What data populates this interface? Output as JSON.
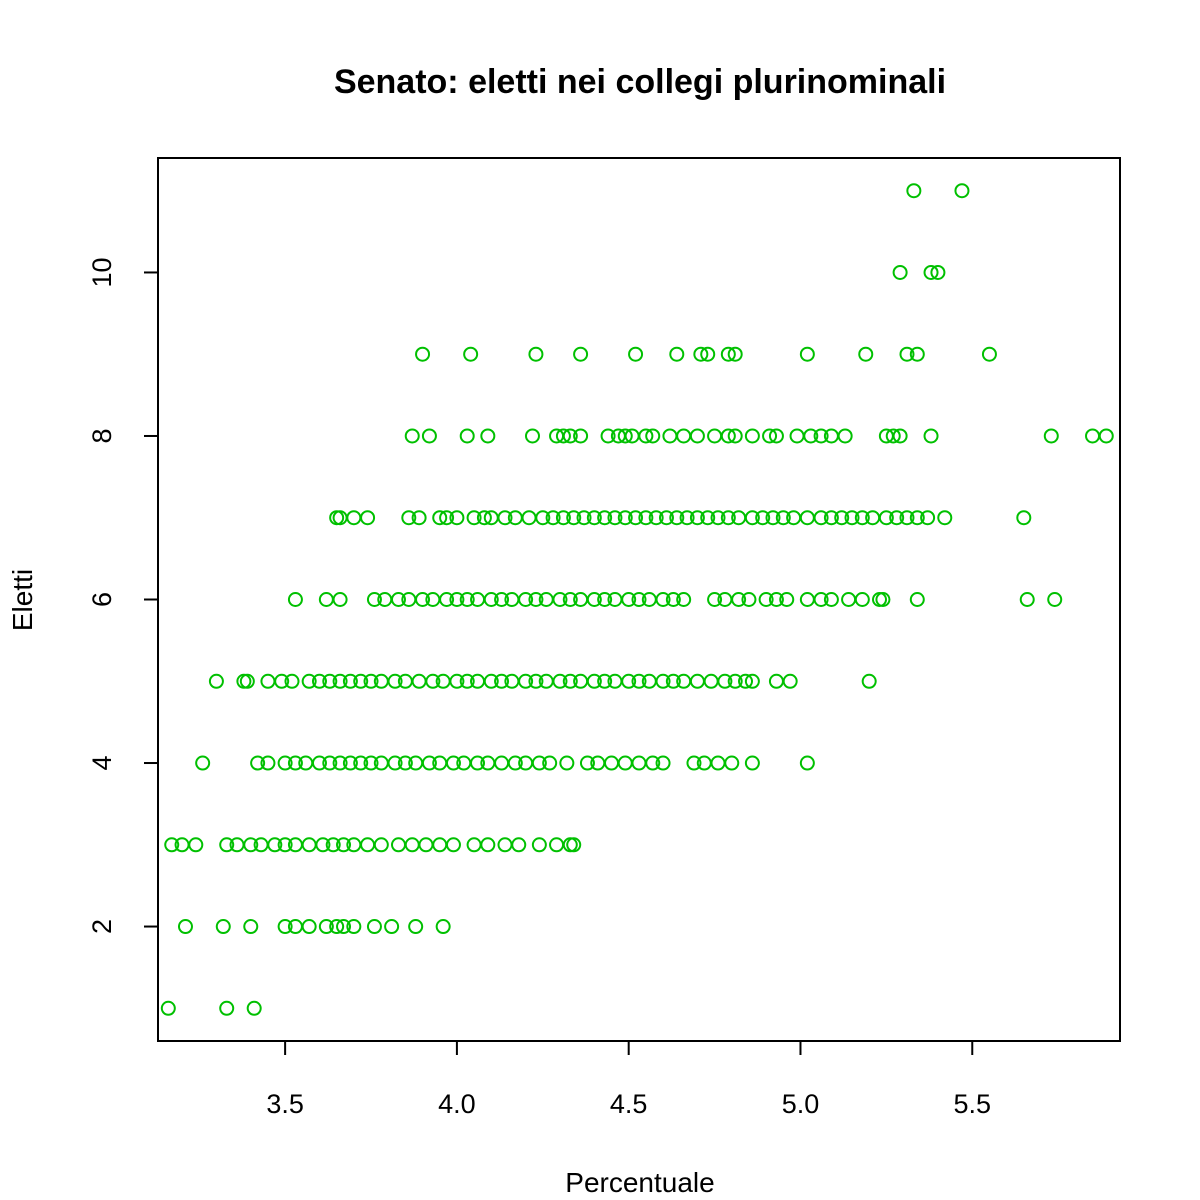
{
  "chart_data": {
    "type": "scatter",
    "title": "Senato: eletti nei collegi plurinominali",
    "xlabel": "Percentuale",
    "ylabel": "Eletti",
    "xlim": [
      3.13,
      5.93
    ],
    "ylim": [
      0.6,
      11.4
    ],
    "x_ticks": [
      3.5,
      4.0,
      4.5,
      5.0,
      5.5
    ],
    "x_tick_labels": [
      "3.5",
      "4.0",
      "4.5",
      "5.0",
      "5.5"
    ],
    "y_ticks": [
      2,
      4,
      6,
      8,
      10
    ],
    "y_tick_labels": [
      "2",
      "4",
      "6",
      "8",
      "10"
    ],
    "grid": false,
    "marker": "open-circle",
    "color": "#00c000",
    "series": [
      {
        "x": [
          5.33,
          5.47,
          5.29,
          5.38,
          5.4,
          3.9,
          4.04,
          4.23,
          4.36,
          4.52,
          4.64,
          4.71,
          4.73,
          4.79,
          4.81,
          5.02,
          5.19,
          5.31,
          5.34,
          5.55,
          3.87,
          3.92,
          4.03,
          4.09,
          4.22,
          4.29,
          4.31,
          4.33,
          4.36,
          4.44,
          4.47,
          4.49,
          4.51,
          4.55,
          4.57,
          4.62,
          4.66,
          4.7,
          4.75,
          4.79,
          4.81,
          4.86,
          4.91,
          4.93,
          4.99,
          5.03,
          5.06,
          5.09,
          5.13,
          5.25,
          5.27,
          5.29,
          5.38,
          5.73,
          5.85,
          5.89,
          3.65,
          3.66,
          3.7,
          3.74,
          3.86,
          3.89,
          3.95,
          3.97,
          4.0,
          4.05,
          4.08,
          4.1,
          4.14,
          4.17,
          4.21,
          4.25,
          4.28,
          4.31,
          4.34,
          4.37,
          4.4,
          4.43,
          4.46,
          4.49,
          4.52,
          4.55,
          4.58,
          4.61,
          4.64,
          4.67,
          4.7,
          4.73,
          4.76,
          4.79,
          4.82,
          4.86,
          4.89,
          4.92,
          4.95,
          4.98,
          5.02,
          5.06,
          5.09,
          5.12,
          5.15,
          5.18,
          5.21,
          5.25,
          5.28,
          5.31,
          5.34,
          5.37,
          5.42,
          5.65,
          3.53,
          3.62,
          3.66,
          3.76,
          3.79,
          3.83,
          3.86,
          3.9,
          3.93,
          3.97,
          4.0,
          4.03,
          4.06,
          4.1,
          4.13,
          4.16,
          4.2,
          4.23,
          4.26,
          4.3,
          4.33,
          4.36,
          4.4,
          4.43,
          4.46,
          4.5,
          4.53,
          4.56,
          4.6,
          4.63,
          4.66,
          4.75,
          4.78,
          4.82,
          4.85,
          4.9,
          4.93,
          4.96,
          5.02,
          5.06,
          5.09,
          5.14,
          5.18,
          5.23,
          5.24,
          5.34,
          5.66,
          5.74,
          3.3,
          3.38,
          3.39,
          3.45,
          3.49,
          3.52,
          3.57,
          3.6,
          3.63,
          3.66,
          3.69,
          3.72,
          3.75,
          3.78,
          3.82,
          3.85,
          3.89,
          3.93,
          3.96,
          4.0,
          4.03,
          4.06,
          4.1,
          4.13,
          4.16,
          4.2,
          4.23,
          4.26,
          4.3,
          4.33,
          4.36,
          4.4,
          4.43,
          4.46,
          4.5,
          4.53,
          4.56,
          4.6,
          4.63,
          4.66,
          4.7,
          4.74,
          4.78,
          4.81,
          4.84,
          4.86,
          4.93,
          4.97,
          5.2,
          3.26,
          3.42,
          3.45,
          3.5,
          3.53,
          3.56,
          3.6,
          3.63,
          3.66,
          3.69,
          3.72,
          3.75,
          3.78,
          3.82,
          3.85,
          3.88,
          3.92,
          3.95,
          3.99,
          4.02,
          4.06,
          4.09,
          4.13,
          4.17,
          4.2,
          4.24,
          4.27,
          4.32,
          4.38,
          4.41,
          4.45,
          4.49,
          4.53,
          4.57,
          4.6,
          4.69,
          4.72,
          4.76,
          4.8,
          4.86,
          5.02,
          3.17,
          3.2,
          3.24,
          3.33,
          3.36,
          3.4,
          3.43,
          3.47,
          3.5,
          3.53,
          3.57,
          3.61,
          3.64,
          3.67,
          3.7,
          3.74,
          3.78,
          3.83,
          3.87,
          3.91,
          3.95,
          3.99,
          4.05,
          4.09,
          4.14,
          4.18,
          4.24,
          4.29,
          4.33,
          4.34,
          3.21,
          3.32,
          3.4,
          3.5,
          3.53,
          3.57,
          3.62,
          3.65,
          3.67,
          3.7,
          3.76,
          3.81,
          3.88,
          3.96,
          3.16,
          3.33,
          3.41
        ],
        "y": [
          11,
          11,
          10,
          10,
          10,
          9,
          9,
          9,
          9,
          9,
          9,
          9,
          9,
          9,
          9,
          9,
          9,
          9,
          9,
          9,
          8,
          8,
          8,
          8,
          8,
          8,
          8,
          8,
          8,
          8,
          8,
          8,
          8,
          8,
          8,
          8,
          8,
          8,
          8,
          8,
          8,
          8,
          8,
          8,
          8,
          8,
          8,
          8,
          8,
          8,
          8,
          8,
          8,
          8,
          8,
          8,
          7,
          7,
          7,
          7,
          7,
          7,
          7,
          7,
          7,
          7,
          7,
          7,
          7,
          7,
          7,
          7,
          7,
          7,
          7,
          7,
          7,
          7,
          7,
          7,
          7,
          7,
          7,
          7,
          7,
          7,
          7,
          7,
          7,
          7,
          7,
          7,
          7,
          7,
          7,
          7,
          7,
          7,
          7,
          7,
          7,
          7,
          7,
          7,
          7,
          7,
          7,
          7,
          7,
          7,
          6,
          6,
          6,
          6,
          6,
          6,
          6,
          6,
          6,
          6,
          6,
          6,
          6,
          6,
          6,
          6,
          6,
          6,
          6,
          6,
          6,
          6,
          6,
          6,
          6,
          6,
          6,
          6,
          6,
          6,
          6,
          6,
          6,
          6,
          6,
          6,
          6,
          6,
          6,
          6,
          6,
          6,
          6,
          6,
          6,
          6,
          6,
          6,
          5,
          5,
          5,
          5,
          5,
          5,
          5,
          5,
          5,
          5,
          5,
          5,
          5,
          5,
          5,
          5,
          5,
          5,
          5,
          5,
          5,
          5,
          5,
          5,
          5,
          5,
          5,
          5,
          5,
          5,
          5,
          5,
          5,
          5,
          5,
          5,
          5,
          5,
          5,
          5,
          5,
          5,
          5,
          5,
          5,
          5,
          5,
          5,
          5,
          4,
          4,
          4,
          4,
          4,
          4,
          4,
          4,
          4,
          4,
          4,
          4,
          4,
          4,
          4,
          4,
          4,
          4,
          4,
          4,
          4,
          4,
          4,
          4,
          4,
          4,
          4,
          4,
          4,
          4,
          4,
          4,
          4,
          4,
          4,
          4,
          4,
          4,
          4,
          4,
          4,
          3,
          3,
          3,
          3,
          3,
          3,
          3,
          3,
          3,
          3,
          3,
          3,
          3,
          3,
          3,
          3,
          3,
          3,
          3,
          3,
          3,
          3,
          3,
          3,
          3,
          3,
          3,
          3,
          3,
          3,
          2,
          2,
          2,
          2,
          2,
          2,
          2,
          2,
          2,
          2,
          2,
          2,
          2,
          2,
          1,
          1,
          1
        ]
      }
    ]
  }
}
